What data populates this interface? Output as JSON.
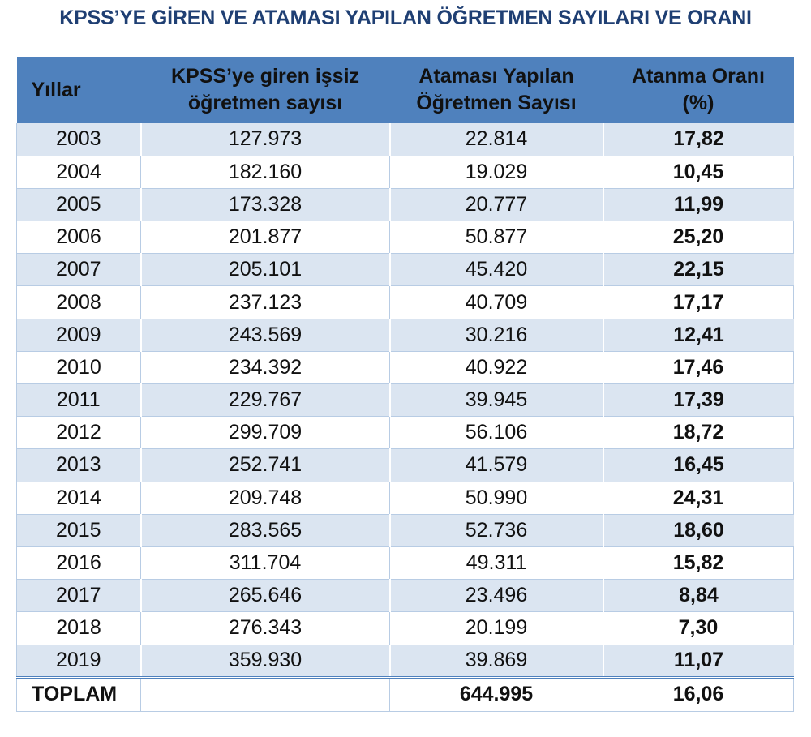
{
  "title": "KPSS’YE GİREN VE ATAMASI YAPILAN ÖĞRETMEN SAYILARI VE ORANI",
  "headers": {
    "years": "Yıllar",
    "applicants_line1": "KPSS’ye giren işsiz",
    "applicants_line2": "öğretmen sayısı",
    "appointed_line1": "Ataması Yapılan",
    "appointed_line2": "Öğretmen Sayısı",
    "rate_line1": "Atanma Oranı",
    "rate_line2": "(%)"
  },
  "rows": [
    {
      "year": "2003",
      "applicants": "127.973",
      "appointed": "22.814",
      "rate": "17,82"
    },
    {
      "year": "2004",
      "applicants": "182.160",
      "appointed": "19.029",
      "rate": "10,45"
    },
    {
      "year": "2005",
      "applicants": "173.328",
      "appointed": "20.777",
      "rate": "11,99"
    },
    {
      "year": "2006",
      "applicants": "201.877",
      "appointed": "50.877",
      "rate": "25,20"
    },
    {
      "year": "2007",
      "applicants": "205.101",
      "appointed": "45.420",
      "rate": "22,15"
    },
    {
      "year": "2008",
      "applicants": "237.123",
      "appointed": "40.709",
      "rate": "17,17"
    },
    {
      "year": "2009",
      "applicants": "243.569",
      "appointed": "30.216",
      "rate": "12,41"
    },
    {
      "year": "2010",
      "applicants": "234.392",
      "appointed": "40.922",
      "rate": "17,46"
    },
    {
      "year": "2011",
      "applicants": "229.767",
      "appointed": "39.945",
      "rate": "17,39"
    },
    {
      "year": "2012",
      "applicants": "299.709",
      "appointed": "56.106",
      "rate": "18,72"
    },
    {
      "year": "2013",
      "applicants": "252.741",
      "appointed": "41.579",
      "rate": "16,45"
    },
    {
      "year": "2014",
      "applicants": "209.748",
      "appointed": "50.990",
      "rate": "24,31"
    },
    {
      "year": "2015",
      "applicants": "283.565",
      "appointed": "52.736",
      "rate": "18,60"
    },
    {
      "year": "2016",
      "applicants": "311.704",
      "appointed": "49.311",
      "rate": "15,82"
    },
    {
      "year": "2017",
      "applicants": "265.646",
      "appointed": "23.496",
      "rate": "8,84"
    },
    {
      "year": "2018",
      "applicants": "276.343",
      "appointed": "20.199",
      "rate": "7,30"
    },
    {
      "year": "2019",
      "applicants": "359.930",
      "appointed": "39.869",
      "rate": "11,07"
    }
  ],
  "total": {
    "label": "TOPLAM",
    "applicants": "",
    "appointed": "644.995",
    "rate": "16,06"
  },
  "colors": {
    "header_bg": "#4f81bd",
    "title": "#1f3f73",
    "band": "#dbe5f1"
  }
}
